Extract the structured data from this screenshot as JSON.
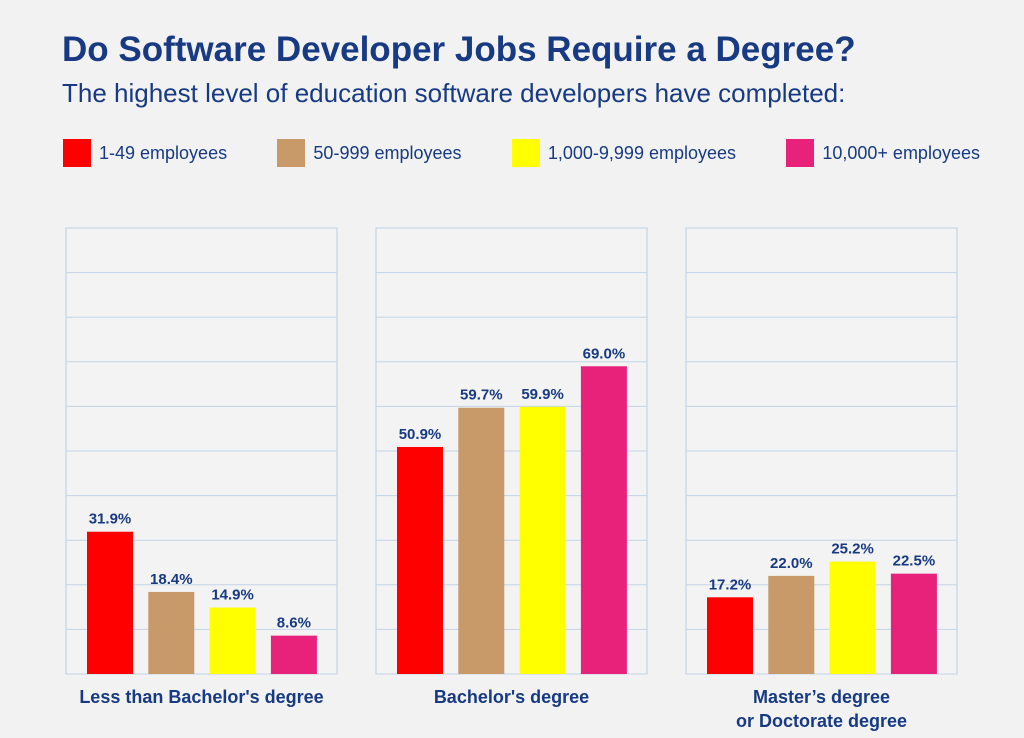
{
  "chart_data": {
    "type": "bar",
    "title": "Do Software Developer Jobs Require a Degree?",
    "subtitle": "The highest level of education software developers have completed:",
    "categories": [
      "Less than Bachelor's degree",
      "Bachelor's degree",
      "Master’s degree\nor Doctorate degree"
    ],
    "series": [
      {
        "name": "1-49 employees",
        "color": "#fe0000",
        "values": [
          31.9,
          50.9,
          17.2
        ],
        "value_labels": [
          "31.9%",
          "50.9%",
          "17.2%"
        ]
      },
      {
        "name": "50-999 employees",
        "color": "#c89a6a",
        "values": [
          18.4,
          59.7,
          22.0
        ],
        "value_labels": [
          "18.4%",
          "59.7%",
          "22.0%"
        ]
      },
      {
        "name": "1,000-9,999 employees",
        "color": "#ffff00",
        "values": [
          14.9,
          59.9,
          25.2
        ],
        "value_labels": [
          "14.9%",
          "59.9%",
          "25.2%"
        ]
      },
      {
        "name": "10,000+ employees",
        "color": "#e8217a",
        "values": [
          8.6,
          69.0,
          22.5
        ],
        "value_labels": [
          "8.6%",
          "69.0%",
          "22.5%"
        ]
      }
    ],
    "ylim": [
      0,
      100
    ],
    "yticks": [
      0,
      10,
      20,
      30,
      40,
      50,
      60,
      70,
      80,
      90,
      100
    ],
    "grid": true
  }
}
